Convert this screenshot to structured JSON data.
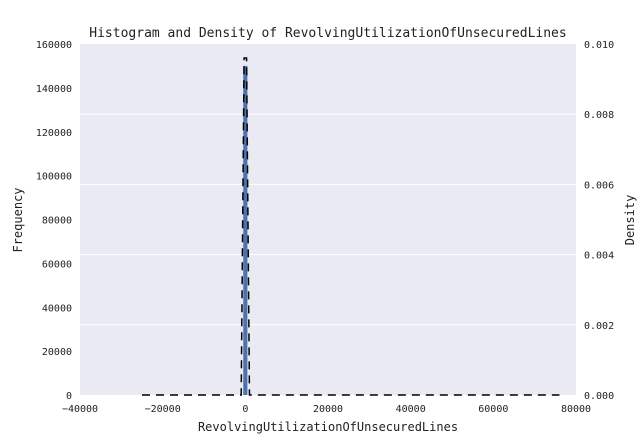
{
  "colors": {
    "background": "#EAEAF2",
    "grid": "#FFFFFF",
    "bar": "#4C72B0",
    "density": "#000000"
  },
  "chart_data": {
    "type": "bar",
    "title": "Histogram and Density of RevolvingUtilizationOfUnsecuredLines",
    "xlabel": "RevolvingUtilizationOfUnsecuredLines",
    "ylabel": "Frequency",
    "y2label": "Density",
    "xlim": [
      -40000,
      80000
    ],
    "ylim": [
      0,
      160000
    ],
    "y2lim": [
      0,
      0.01
    ],
    "xticks": [
      -40000,
      -20000,
      0,
      20000,
      40000,
      60000,
      80000
    ],
    "xtick_labels": [
      "−40000",
      "−20000",
      "0",
      "20000",
      "40000",
      "60000",
      "80000"
    ],
    "yticks": [
      0,
      20000,
      40000,
      60000,
      80000,
      100000,
      120000,
      140000,
      160000
    ],
    "ytick_labels": [
      "0",
      "20000",
      "40000",
      "60000",
      "80000",
      "100000",
      "120000",
      "140000",
      "160000"
    ],
    "y2ticks": [
      0,
      0.002,
      0.004,
      0.006,
      0.008,
      0.01
    ],
    "y2tick_labels": [
      "0.000",
      "0.002",
      "0.004",
      "0.006",
      "0.008",
      "0.010"
    ],
    "grid": true,
    "histogram": {
      "bins": [
        {
          "x0": -500,
          "x1": 500,
          "value": 150000
        }
      ]
    },
    "density": {
      "style": "dashed",
      "x": [
        -25000,
        -1000,
        -300,
        0,
        300,
        1000,
        76000
      ],
      "y": [
        0,
        0,
        0.0096,
        0.0096,
        0.0096,
        0,
        0
      ]
    }
  }
}
